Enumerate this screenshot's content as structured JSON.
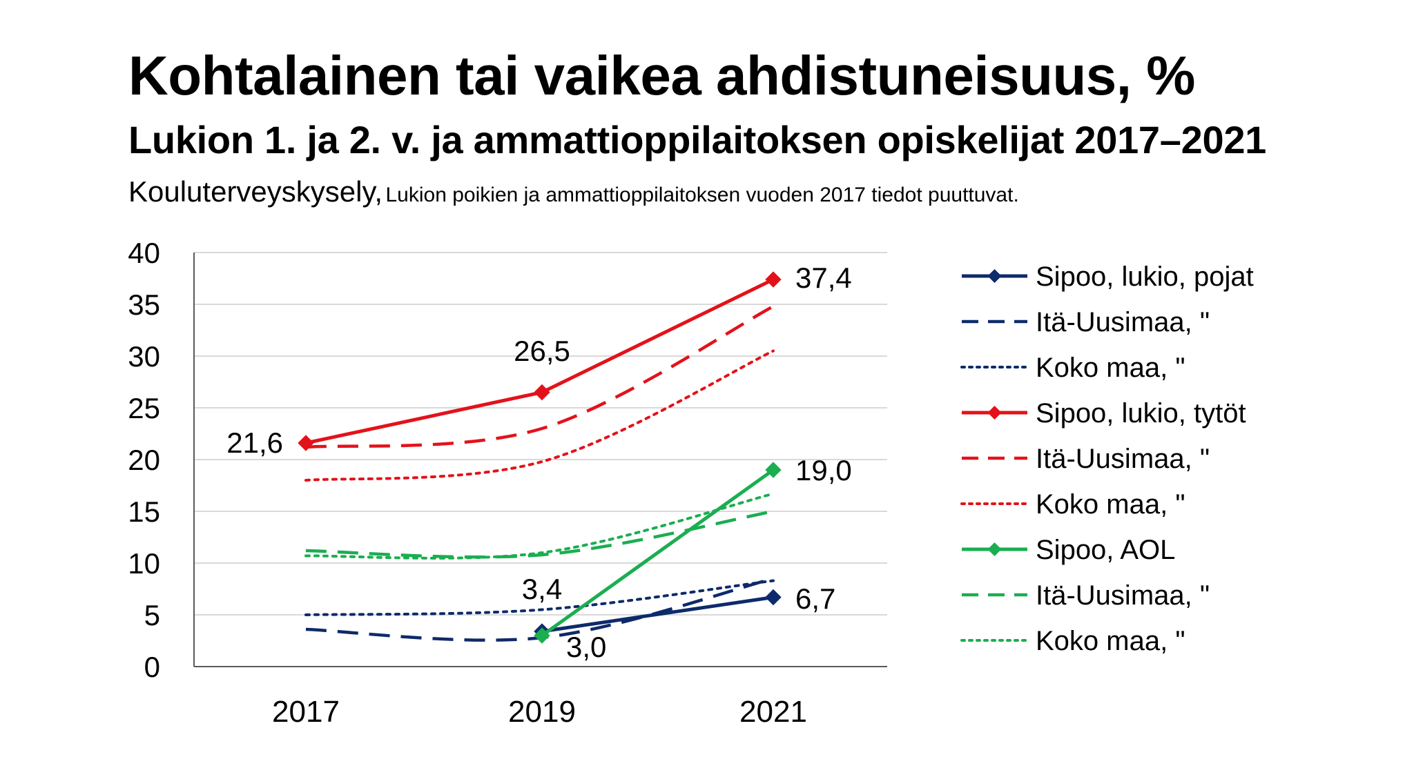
{
  "header": {
    "title": "Kohtalainen tai vaikea ahdistuneisuus, %",
    "subtitle": "Lukion 1. ja 2. v. ja ammattioppilaitoksen opiskelijat 2017–2021",
    "source_lead": "Kouluterveyskysely,",
    "source_note": "Lukion poikien ja ammattioppilaitoksen vuoden 2017 tiedot puuttuvat."
  },
  "chart_data": {
    "type": "line",
    "title": "Kohtalainen tai vaikea ahdistuneisuus, %",
    "subtitle": "Lukion 1. ja 2. v. ja ammattioppilaitoksen opiskelijat 2017–2021",
    "categories": [
      "2017",
      "2019",
      "2021"
    ],
    "ylim": [
      0,
      40
    ],
    "yticks": [
      0,
      5,
      10,
      15,
      20,
      25,
      30,
      35,
      40
    ],
    "grid": true,
    "legend_position": "right",
    "series": [
      {
        "name": "Sipoo, lukio, pojat",
        "color": "#0d2a6b",
        "dash": "solid",
        "marker": "diamond",
        "values": [
          null,
          3.4,
          6.7
        ],
        "labels": [
          null,
          "3,4",
          "6,7"
        ]
      },
      {
        "name": "Itä-Uusimaa, \"",
        "color": "#0d2a6b",
        "dash": "dashed",
        "marker": "none",
        "values": [
          3.6,
          2.8,
          8.5
        ],
        "labels": [
          null,
          null,
          null
        ]
      },
      {
        "name": "Koko maa, \"",
        "color": "#0d2a6b",
        "dash": "dotted",
        "marker": "none",
        "values": [
          5.0,
          5.5,
          8.3
        ],
        "labels": [
          null,
          null,
          null
        ]
      },
      {
        "name": "Sipoo, lukio, tytöt",
        "color": "#e3121a",
        "dash": "solid",
        "marker": "diamond",
        "values": [
          21.6,
          26.5,
          37.4
        ],
        "labels": [
          "21,6",
          "26,5",
          "37,4"
        ]
      },
      {
        "name": "Itä-Uusimaa, \"",
        "color": "#e3121a",
        "dash": "dashed",
        "marker": "none",
        "values": [
          21.2,
          23.0,
          34.8
        ],
        "labels": [
          null,
          null,
          null
        ]
      },
      {
        "name": "Koko maa, \"",
        "color": "#e3121a",
        "dash": "dotted",
        "marker": "none",
        "values": [
          18.0,
          19.8,
          30.5
        ],
        "labels": [
          null,
          null,
          null
        ]
      },
      {
        "name": "Sipoo, AOL",
        "color": "#1aae50",
        "dash": "solid",
        "marker": "diamond",
        "values": [
          null,
          3.0,
          19.0
        ],
        "labels": [
          null,
          "3,0",
          "19,0"
        ]
      },
      {
        "name": "Itä-Uusimaa, \"",
        "color": "#1aae50",
        "dash": "dashed",
        "marker": "none",
        "values": [
          11.2,
          10.8,
          15.0
        ],
        "labels": [
          null,
          null,
          null
        ]
      },
      {
        "name": "Koko maa, \"",
        "color": "#1aae50",
        "dash": "dotted",
        "marker": "none",
        "values": [
          10.7,
          11.0,
          16.7
        ],
        "labels": [
          null,
          null,
          null
        ]
      }
    ]
  }
}
